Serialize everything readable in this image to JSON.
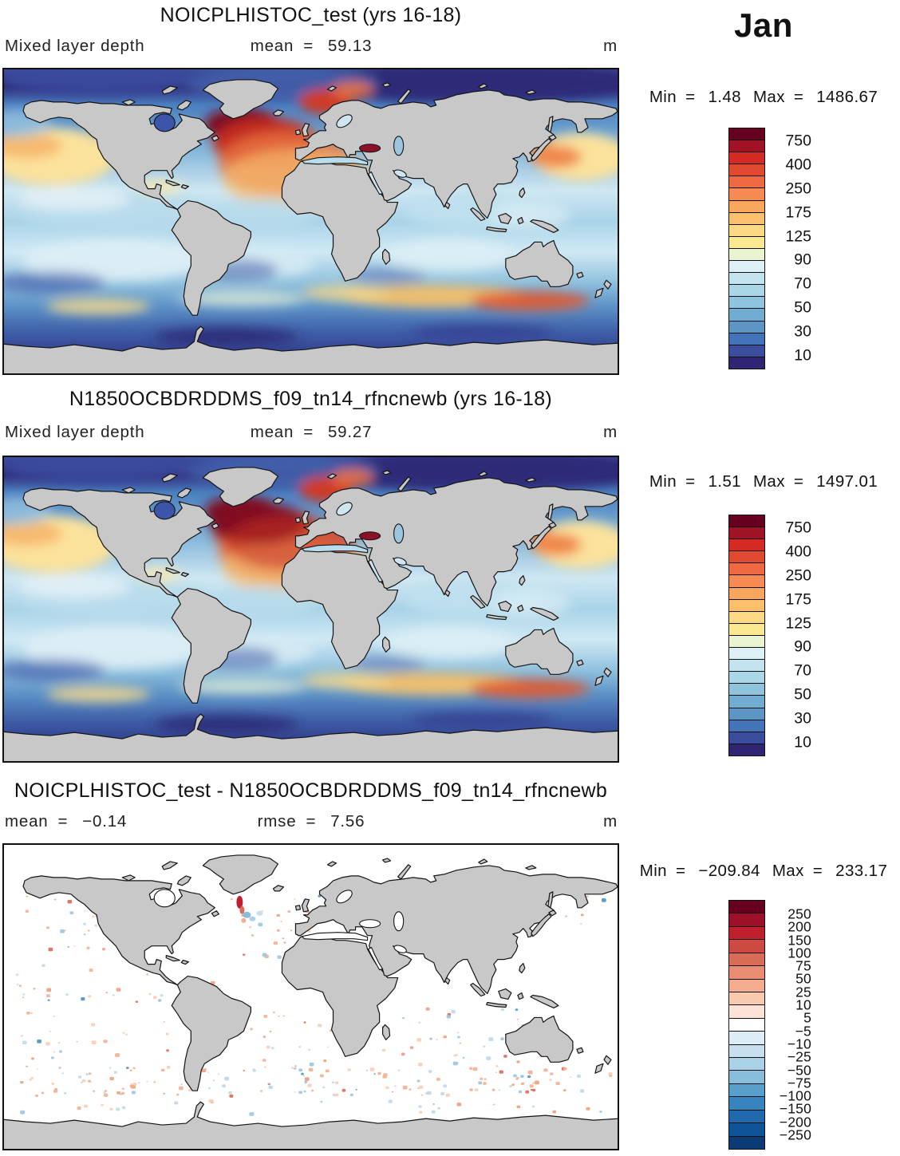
{
  "month": "Jan",
  "panels": [
    {
      "title": "NOICPLHISTOC_test (yrs 16-18)",
      "field": "Mixed layer depth",
      "units": "m",
      "stats": [
        {
          "label": "mean",
          "eq": "=",
          "value": "59.13"
        }
      ],
      "minmax": {
        "min_label": "Min",
        "eq1": "=",
        "min_value": "1.48",
        "max_label": "Max",
        "eq2": "=",
        "max_value": "1486.67"
      },
      "colorbar": {
        "labels": [
          "750",
          "400",
          "250",
          "175",
          "125",
          "90",
          "70",
          "50",
          "30",
          "10"
        ],
        "colors": [
          "#67001f",
          "#a01226",
          "#d32b23",
          "#e04a31",
          "#ef6a42",
          "#f58a52",
          "#faa75e",
          "#fcc06d",
          "#fdd985",
          "#fbe992",
          "#e9f5d2",
          "#dcf0f6",
          "#c3e4ee",
          "#aad7e8",
          "#8fc4de",
          "#71add3",
          "#5c96c5",
          "#4374ba",
          "#3b4d9d",
          "#2f2572"
        ]
      }
    },
    {
      "title": "N1850OCBDRDDMS_f09_tn14_rfncnewb (yrs 16-18)",
      "field": "Mixed layer depth",
      "units": "m",
      "stats": [
        {
          "label": "mean",
          "eq": "=",
          "value": "59.27"
        }
      ],
      "minmax": {
        "min_label": "Min",
        "eq1": "=",
        "min_value": "1.51",
        "max_label": "Max",
        "eq2": "=",
        "max_value": "1497.01"
      },
      "colorbar": {
        "labels": [
          "750",
          "400",
          "250",
          "175",
          "125",
          "90",
          "70",
          "50",
          "30",
          "10"
        ],
        "colors": [
          "#67001f",
          "#a01226",
          "#d32b23",
          "#e04a31",
          "#ef6a42",
          "#f58a52",
          "#faa75e",
          "#fcc06d",
          "#fdd985",
          "#fbe992",
          "#e9f5d2",
          "#dcf0f6",
          "#c3e4ee",
          "#aad7e8",
          "#8fc4de",
          "#71add3",
          "#5c96c5",
          "#4374ba",
          "#3b4d9d",
          "#2f2572"
        ]
      }
    },
    {
      "title": "NOICPLHISTOC_test - N1850OCBDRDDMS_f09_tn14_rfncnewb",
      "units": "m",
      "stats": [
        {
          "label": "mean",
          "eq": "=",
          "value": "−0.14"
        },
        {
          "label": "rmse",
          "eq": "=",
          "value": "7.56"
        }
      ],
      "minmax": {
        "min_label": "Min",
        "eq1": "=",
        "min_value": "−209.84",
        "max_label": "Max",
        "eq2": "=",
        "max_value": "233.17"
      },
      "colorbar": {
        "labels": [
          "250",
          "200",
          "150",
          "100",
          "75",
          "50",
          "25",
          "10",
          "5",
          "−5",
          "−10",
          "−25",
          "−50",
          "−75",
          "−100",
          "−150",
          "−200",
          "−250"
        ],
        "colors": [
          "#67001f",
          "#9c1127",
          "#c01f2e",
          "#cd4a42",
          "#d96c57",
          "#ea8e71",
          "#f3ac8d",
          "#f8cab0",
          "#fbe4d7",
          "#ffffff",
          "#dcedf5",
          "#c8e0ee",
          "#aad1e5",
          "#88bedb",
          "#57a0cc",
          "#3884be",
          "#2169ac",
          "#0f5499",
          "#0a3b75"
        ]
      }
    }
  ],
  "chart_data": [
    {
      "type": "heatmap",
      "projection": "global equirectangular map",
      "title": "NOICPLHISTOC_test (yrs 16-18)",
      "variable": "Mixed layer depth",
      "units": "m",
      "month": "Jan",
      "years": "16-18",
      "mean": 59.13,
      "min": 1.48,
      "max": 1486.67,
      "colorbar_levels": [
        750,
        400,
        250,
        175,
        125,
        90,
        70,
        50,
        30,
        10
      ],
      "colorbar_colors": [
        "#67001f",
        "#a01226",
        "#d32b23",
        "#e04a31",
        "#ef6a42",
        "#f58a52",
        "#faa75e",
        "#fcc06d",
        "#fdd985",
        "#fbe992",
        "#e9f5d2",
        "#dcf0f6",
        "#c3e4ee",
        "#aad7e8",
        "#8fc4de",
        "#71add3",
        "#5c96c5",
        "#4374ba",
        "#3b4d9d",
        "#2f2572"
      ],
      "land_color": "#c8c8c8",
      "notes": "Deep mixed layer (red/maroon) in North Atlantic and Nordic Seas; yellow-orange subtropical North Pacific; orange band along Southern Ocean ~50S; dark blue polar and tropical shallow regions"
    },
    {
      "type": "heatmap",
      "projection": "global equirectangular map",
      "title": "N1850OCBDRDDMS_f09_tn14_rfncnewb (yrs 16-18)",
      "variable": "Mixed layer depth",
      "units": "m",
      "month": "Jan",
      "years": "16-18",
      "mean": 59.27,
      "min": 1.51,
      "max": 1497.01,
      "colorbar_levels": [
        750,
        400,
        250,
        175,
        125,
        90,
        70,
        50,
        30,
        10
      ],
      "colorbar_colors": [
        "#67001f",
        "#a01226",
        "#d32b23",
        "#e04a31",
        "#ef6a42",
        "#f58a52",
        "#faa75e",
        "#fcc06d",
        "#fdd985",
        "#fbe992",
        "#e9f5d2",
        "#dcf0f6",
        "#c3e4ee",
        "#aad7e8",
        "#8fc4de",
        "#71add3",
        "#5c96c5",
        "#4374ba",
        "#3b4d9d",
        "#2f2572"
      ],
      "land_color": "#c8c8c8",
      "notes": "Same field as panel 1 for comparison run; slightly deeper/more extensive North Atlantic maximum"
    },
    {
      "type": "heatmap",
      "projection": "global equirectangular map",
      "title": "NOICPLHISTOC_test - N1850OCBDRDDMS_f09_tn14_rfncnewb",
      "variable": "Mixed layer depth difference",
      "units": "m",
      "mean": -0.14,
      "rmse": 7.56,
      "min": -209.84,
      "max": 233.17,
      "colorbar_levels": [
        250,
        200,
        150,
        100,
        75,
        50,
        25,
        10,
        5,
        -5,
        -10,
        -25,
        -50,
        -75,
        -100,
        -150,
        -200,
        -250
      ],
      "colorbar_colors": [
        "#67001f",
        "#9c1127",
        "#c01f2e",
        "#cd4a42",
        "#d96c57",
        "#ea8e71",
        "#f3ac8d",
        "#f8cab0",
        "#fbe4d7",
        "#ffffff",
        "#dcedf5",
        "#c8e0ee",
        "#aad1e5",
        "#88bedb",
        "#57a0cc",
        "#3884be",
        "#2169ac",
        "#0f5499",
        "#0a3b75"
      ],
      "land_color": "#c8c8c8",
      "notes": "Mostly near-zero (white) differences; sparse small red/blue speckles in tropics and a Southern Ocean band; localized strong dipole near Labrador Sea / south of Greenland"
    }
  ]
}
